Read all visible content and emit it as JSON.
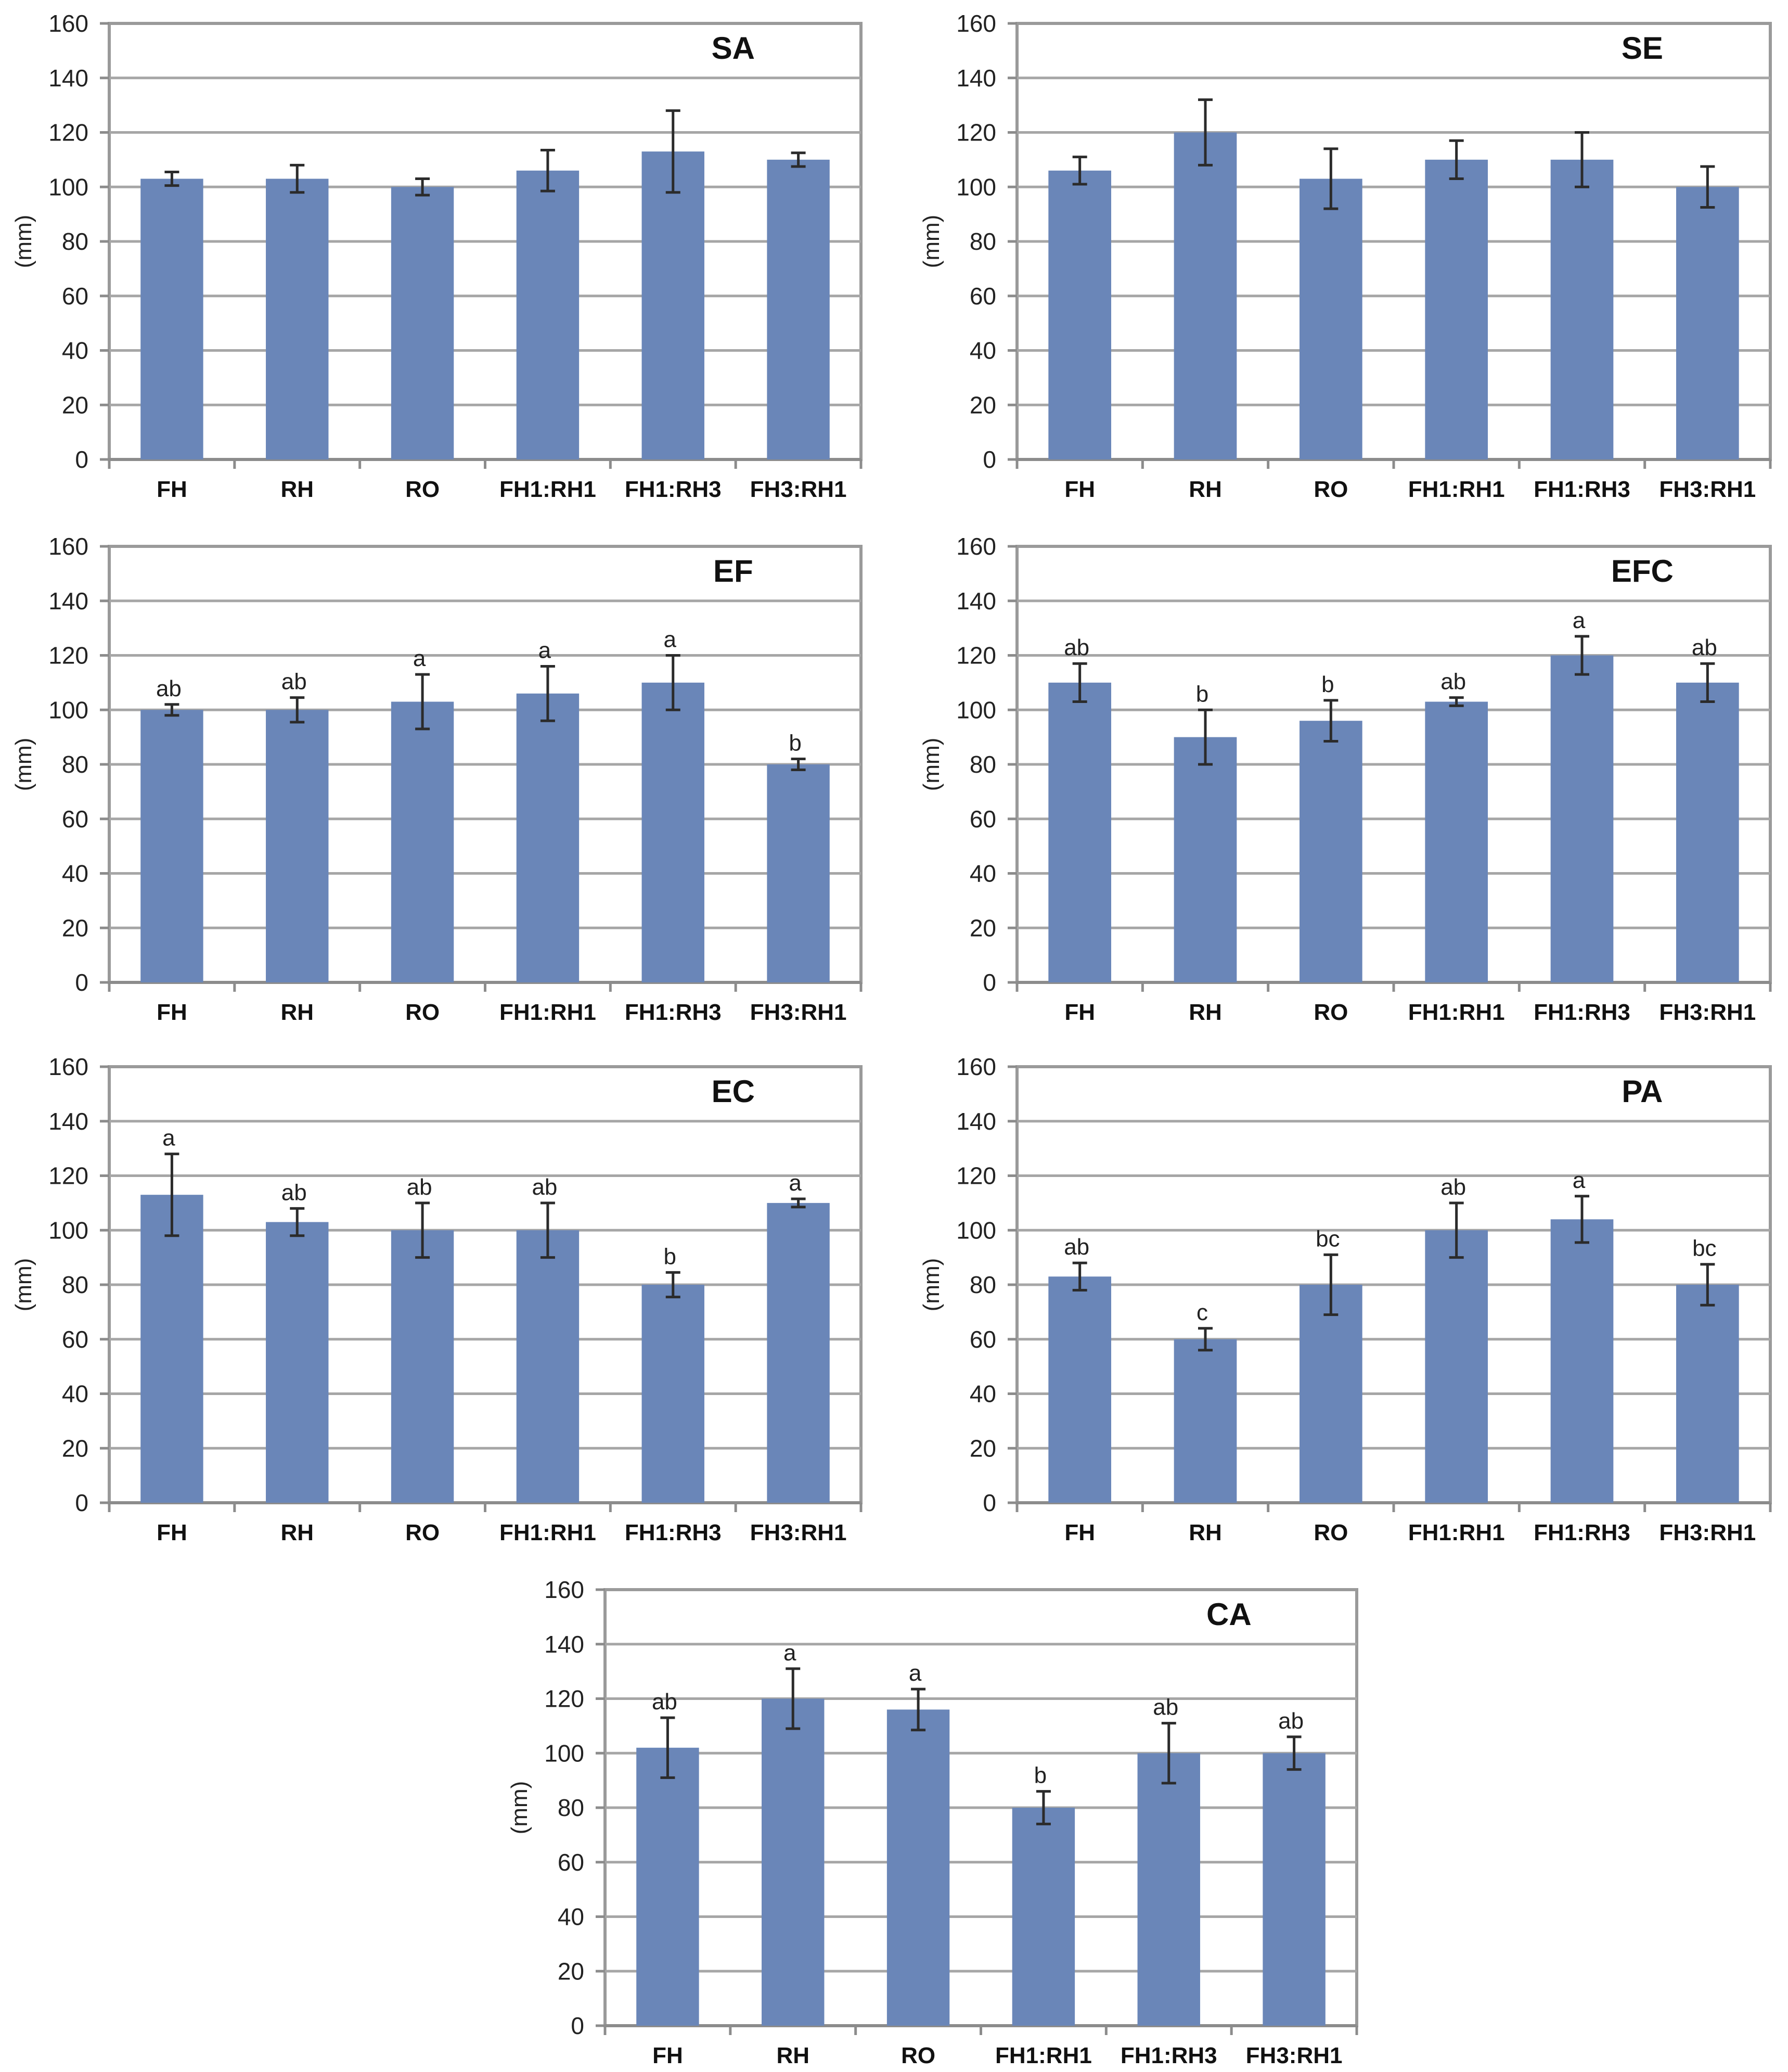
{
  "chart_data": [
    {
      "type": "bar",
      "title": "SA",
      "ylabel": "(mm)",
      "xlabel": "",
      "ylim": [
        0,
        160
      ],
      "yticks": [
        0,
        20,
        40,
        60,
        80,
        100,
        120,
        140,
        160
      ],
      "grid": true,
      "legend": "none",
      "categories": [
        "FH",
        "RH",
        "RO",
        "FH1:RH1",
        "FH1:RH3",
        "FH3:RH1"
      ],
      "values": [
        103,
        103,
        100,
        106,
        113,
        110
      ],
      "errors": [
        2.5,
        5,
        3,
        7.5,
        15,
        2.5
      ],
      "labels": [
        "",
        "",
        "",
        "",
        "",
        ""
      ],
      "bar_color": "#6a86b8"
    },
    {
      "type": "bar",
      "title": "SE",
      "ylabel": "(mm)",
      "xlabel": "",
      "ylim": [
        0,
        160
      ],
      "yticks": [
        0,
        20,
        40,
        60,
        80,
        100,
        120,
        140,
        160
      ],
      "grid": true,
      "legend": "none",
      "categories": [
        "FH",
        "RH",
        "RO",
        "FH1:RH1",
        "FH1:RH3",
        "FH3:RH1"
      ],
      "values": [
        106,
        120,
        103,
        110,
        110,
        100
      ],
      "errors": [
        5,
        12,
        11,
        7,
        10,
        7.5
      ],
      "labels": [
        "",
        "",
        "",
        "",
        "",
        ""
      ],
      "bar_color": "#6a86b8"
    },
    {
      "type": "bar",
      "title": "EF",
      "ylabel": "(mm)",
      "xlabel": "",
      "ylim": [
        0,
        160
      ],
      "yticks": [
        0,
        20,
        40,
        60,
        80,
        100,
        120,
        140,
        160
      ],
      "grid": true,
      "legend": "none",
      "categories": [
        "FH",
        "RH",
        "RO",
        "FH1:RH1",
        "FH1:RH3",
        "FH3:RH1"
      ],
      "values": [
        100,
        100,
        103,
        106,
        110,
        80
      ],
      "errors": [
        2,
        4.5,
        10,
        10,
        10,
        2
      ],
      "labels": [
        "ab",
        "ab",
        "a",
        "a",
        "a",
        "b"
      ],
      "bar_color": "#6a86b8"
    },
    {
      "type": "bar",
      "title": "EFC",
      "ylabel": "(mm)",
      "xlabel": "",
      "ylim": [
        0,
        160
      ],
      "yticks": [
        0,
        20,
        40,
        60,
        80,
        100,
        120,
        140,
        160
      ],
      "grid": true,
      "legend": "none",
      "categories": [
        "FH",
        "RH",
        "RO",
        "FH1:RH1",
        "FH1:RH3",
        "FH3:RH1"
      ],
      "values": [
        110,
        90,
        96,
        103,
        120,
        110
      ],
      "errors": [
        7,
        10,
        7.5,
        1.5,
        7,
        7
      ],
      "labels": [
        "ab",
        "b",
        "b",
        "ab",
        "a",
        "ab"
      ],
      "bar_color": "#6a86b8"
    },
    {
      "type": "bar",
      "title": "EC",
      "ylabel": "(mm)",
      "xlabel": "",
      "ylim": [
        0,
        160
      ],
      "yticks": [
        0,
        20,
        40,
        60,
        80,
        100,
        120,
        140,
        160
      ],
      "grid": true,
      "legend": "none",
      "categories": [
        "FH",
        "RH",
        "RO",
        "FH1:RH1",
        "FH1:RH3",
        "FH3:RH1"
      ],
      "values": [
        113,
        103,
        100,
        100,
        80,
        110
      ],
      "errors": [
        15,
        5,
        10,
        10,
        4.5,
        1.5
      ],
      "labels": [
        "a",
        "ab",
        "ab",
        "ab",
        "b",
        "a"
      ],
      "bar_color": "#6a86b8"
    },
    {
      "type": "bar",
      "title": "PA",
      "ylabel": "(mm)",
      "xlabel": "",
      "ylim": [
        0,
        160
      ],
      "yticks": [
        0,
        20,
        40,
        60,
        80,
        100,
        120,
        140,
        160
      ],
      "grid": true,
      "legend": "none",
      "categories": [
        "FH",
        "RH",
        "RO",
        "FH1:RH1",
        "FH1:RH3",
        "FH3:RH1"
      ],
      "values": [
        83,
        60,
        80,
        100,
        104,
        80
      ],
      "errors": [
        5,
        4,
        11,
        10,
        8.5,
        7.5
      ],
      "labels": [
        "ab",
        "c",
        "bc",
        "ab",
        "a",
        "bc"
      ],
      "bar_color": "#6a86b8"
    },
    {
      "type": "bar",
      "title": "CA",
      "ylabel": "(mm)",
      "xlabel": "",
      "ylim": [
        0,
        160
      ],
      "yticks": [
        0,
        20,
        40,
        60,
        80,
        100,
        120,
        140,
        160
      ],
      "grid": true,
      "legend": "none",
      "categories": [
        "FH",
        "RH",
        "RO",
        "FH1:RH1",
        "FH1:RH3",
        "FH3:RH1"
      ],
      "values": [
        102,
        120,
        116,
        80,
        100,
        100
      ],
      "errors": [
        11,
        11,
        7.5,
        6,
        11,
        6
      ],
      "labels": [
        "ab",
        "a",
        "a",
        "b",
        "ab",
        "ab"
      ],
      "bar_color": "#6a86b8"
    }
  ]
}
